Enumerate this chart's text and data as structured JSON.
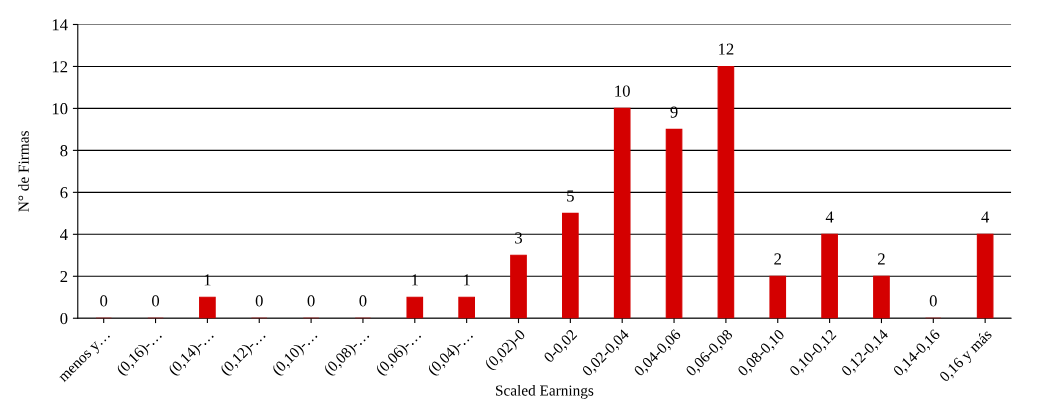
{
  "chart_data": {
    "type": "bar",
    "xlabel": "Scaled Earnings",
    "ylabel": "N° de Firmas",
    "categories": [
      "menos y…",
      "(0,16)-…",
      "(0,14)-…",
      "(0,12)-…",
      "(0,10)-…",
      "(0,08)-…",
      "(0,06)-…",
      "(0,04)-…",
      "(0,02)-0",
      "0-0,02",
      "0,02-0,04",
      "0,04-0,06",
      "0,06-0,08",
      "0,08-0,10",
      "0,10-0,12",
      "0,12-0,14",
      "0,14-0,16",
      "0,16 y más"
    ],
    "values": [
      0,
      0,
      1,
      0,
      0,
      0,
      1,
      1,
      3,
      5,
      10,
      9,
      12,
      2,
      4,
      2,
      0,
      4
    ],
    "color": "#d40000",
    "ylim": [
      0,
      14
    ],
    "yticks": [
      0,
      2,
      4,
      6,
      8,
      10,
      12,
      14
    ],
    "grid": "y",
    "data_labels": true
  }
}
